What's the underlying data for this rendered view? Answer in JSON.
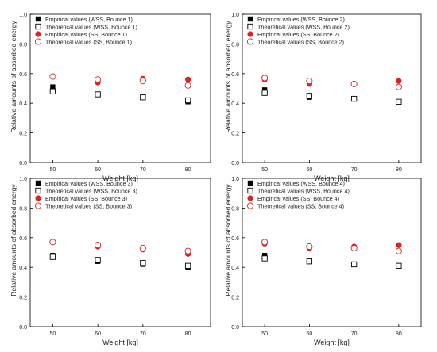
{
  "chart_data": [
    {
      "type": "scatter",
      "xlabel": "Weight [kg]",
      "ylabel": "Relative amounts of absorbed energy",
      "x": [
        50,
        60,
        70,
        80
      ],
      "xlim": [
        45,
        85
      ],
      "ylim": [
        0,
        1.0
      ],
      "xticks": [
        "50",
        "60",
        "70",
        "80"
      ],
      "yticks": [
        "0.0",
        "0.2",
        "0.4",
        "0.6",
        "0.8",
        "1.0"
      ],
      "legend_position": "top-left",
      "series": [
        {
          "name": "Empirical values (WSS, Bounce 1)",
          "marker": "filled-square",
          "color": "#000000",
          "values": [
            0.51,
            null,
            null,
            0.41
          ]
        },
        {
          "name": "Theoretical values (WSS, Bounce 1)",
          "marker": "open-square",
          "color": "#000000",
          "values": [
            0.48,
            0.46,
            0.44,
            0.42
          ]
        },
        {
          "name": "Empirical values (SS, Bounce 1)",
          "marker": "filled-circle",
          "color": "#e02020",
          "values": [
            null,
            0.54,
            0.565,
            0.56
          ]
        },
        {
          "name": "Theoretical values (SS, Bounce 1)",
          "marker": "open-circle",
          "color": "#e02020",
          "values": [
            0.58,
            0.56,
            0.55,
            0.52
          ]
        }
      ]
    },
    {
      "type": "scatter",
      "xlabel": "Weight [kg]",
      "ylabel": "Relative amounts of absorbed energy",
      "x": [
        50,
        60,
        70,
        80
      ],
      "xlim": [
        45,
        85
      ],
      "ylim": [
        0,
        1.0
      ],
      "xticks": [
        "50",
        "60",
        "70",
        "80"
      ],
      "yticks": [
        "0.0",
        "0.2",
        "0.4",
        "0.6",
        "0.8",
        "1.0"
      ],
      "legend_position": "top-left",
      "series": [
        {
          "name": "Empirical values (WSS, Bounce 2)",
          "marker": "filled-square",
          "color": "#000000",
          "values": [
            0.49,
            0.44,
            null,
            0.41
          ]
        },
        {
          "name": "Theoretical values (WSS, Bounce 2)",
          "marker": "open-square",
          "color": "#000000",
          "values": [
            0.47,
            0.45,
            0.43,
            0.41
          ]
        },
        {
          "name": "Empirical values (SS, Bounce 2)",
          "marker": "filled-circle",
          "color": "#e02020",
          "values": [
            0.56,
            0.53,
            null,
            0.55
          ]
        },
        {
          "name": "Theoretical values (SS, Bounce 2)",
          "marker": "open-circle",
          "color": "#e02020",
          "values": [
            0.57,
            0.55,
            0.53,
            0.51
          ]
        }
      ]
    },
    {
      "type": "scatter",
      "xlabel": "Weight [kg]",
      "ylabel": "Relative amounts of absorbed energy",
      "x": [
        50,
        60,
        70,
        80
      ],
      "xlim": [
        45,
        85
      ],
      "ylim": [
        0,
        1.0
      ],
      "xticks": [
        "50",
        "60",
        "70",
        "80"
      ],
      "yticks": [
        "0.0",
        "0.2",
        "0.4",
        "0.6",
        "0.8",
        "1.0"
      ],
      "legend_position": "top-left",
      "series": [
        {
          "name": "Empirical values (WSS, Bounce 3)",
          "marker": "filled-square",
          "color": "#000000",
          "values": [
            0.48,
            0.44,
            0.42,
            0.4
          ]
        },
        {
          "name": "Theoretical values (WSS, Bounce 3)",
          "marker": "open-square",
          "color": "#000000",
          "values": [
            0.47,
            0.45,
            0.43,
            0.41
          ]
        },
        {
          "name": "Empirical values (SS, Bounce 3)",
          "marker": "filled-circle",
          "color": "#e02020",
          "values": [
            0.57,
            0.54,
            0.52,
            0.49
          ]
        },
        {
          "name": "Theoretical values (SS, Bounce 3)",
          "marker": "open-circle",
          "color": "#e02020",
          "values": [
            0.57,
            0.55,
            0.53,
            0.51
          ]
        }
      ]
    },
    {
      "type": "scatter",
      "xlabel": "Weight [kg]",
      "ylabel": "Relative amounts of absorbed energy",
      "x": [
        50,
        60,
        70,
        80
      ],
      "xlim": [
        45,
        85
      ],
      "ylim": [
        0,
        1.0
      ],
      "xticks": [
        "50",
        "60",
        "70",
        "80"
      ],
      "yticks": [
        "0.0",
        "0.2",
        "0.4",
        "0.6",
        "0.8",
        "1.0"
      ],
      "legend_position": "top-left",
      "series": [
        {
          "name": "Empirical values (WSS, Bounce 4)",
          "marker": "filled-square",
          "color": "#000000",
          "values": [
            0.48,
            0.44,
            0.42,
            0.41
          ]
        },
        {
          "name": "Theoretical values (WSS, Bounce 4)",
          "marker": "open-square",
          "color": "#000000",
          "values": [
            0.46,
            0.44,
            0.42,
            0.41
          ]
        },
        {
          "name": "Empirical values (SS, Bounce 4)",
          "marker": "filled-circle",
          "color": "#e02020",
          "values": [
            0.56,
            0.53,
            0.54,
            0.55
          ]
        },
        {
          "name": "Theoretical values (SS, Bounce 4)",
          "marker": "open-circle",
          "color": "#e02020",
          "values": [
            0.57,
            0.54,
            0.53,
            0.51
          ]
        }
      ]
    }
  ]
}
